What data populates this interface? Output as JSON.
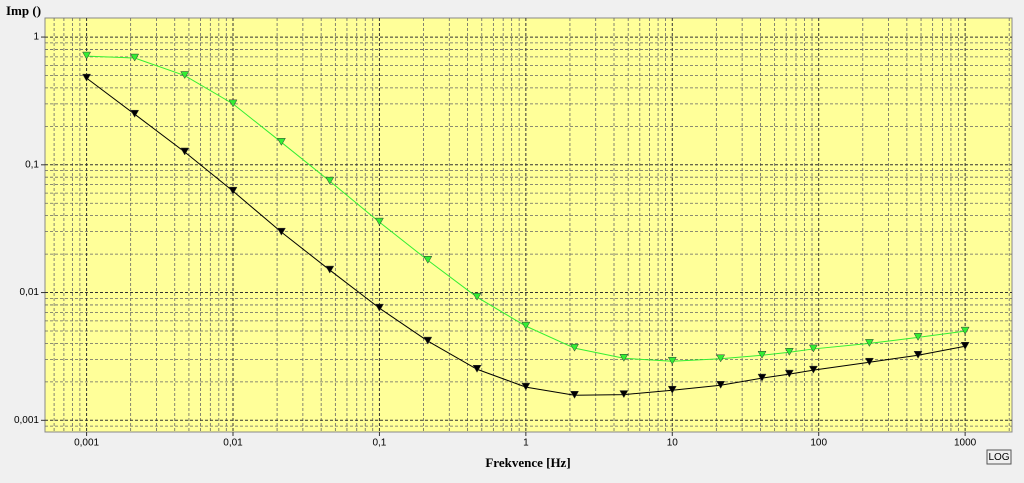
{
  "chart_data": {
    "type": "line",
    "y_label": "Imp ()",
    "x_label": "Frekvence [Hz]",
    "log_x": true,
    "log_y": true,
    "grid": true,
    "background": "#ffff99",
    "x": [
      0.001,
      0.00213,
      0.00468,
      0.01,
      0.0214,
      0.0458,
      0.1,
      0.214,
      0.464,
      1,
      2.15,
      4.67,
      10,
      21.4,
      41,
      63,
      92,
      222,
      477,
      1000
    ],
    "series": [
      {
        "color": "#33ee33",
        "values": [
          0.71,
          0.685,
          0.5,
          0.3,
          0.15,
          0.0745,
          0.0356,
          0.0179,
          0.0092,
          0.00546,
          0.00367,
          0.00306,
          0.0029,
          0.00303,
          0.00323,
          0.00341,
          0.00362,
          0.004,
          0.00446,
          0.00499
        ]
      },
      {
        "color": "#000000",
        "values": [
          0.477,
          0.249,
          0.126,
          0.0622,
          0.0297,
          0.015,
          0.00755,
          0.00417,
          0.00251,
          0.00182,
          0.00157,
          0.00159,
          0.00172,
          0.00188,
          0.00214,
          0.0023,
          0.00247,
          0.00285,
          0.00323,
          0.0038
        ]
      }
    ],
    "xlim": [
      0.00052,
      2090
    ],
    "xticks": [
      {
        "value": 0.001,
        "label": "0,001"
      },
      {
        "value": 0.01,
        "label": "0,01"
      },
      {
        "value": 0.1,
        "label": "0,1"
      },
      1,
      10,
      100,
      1000
    ],
    "ylim": [
      0.00081,
      1.41
    ],
    "yticks": [
      {
        "value": 0.001,
        "label": "0,001"
      },
      {
        "value": 0.01,
        "label": "0,01"
      },
      {
        "value": 0.1,
        "label": "0,1"
      },
      1
    ]
  },
  "ui": {
    "log_button": "LOG"
  }
}
